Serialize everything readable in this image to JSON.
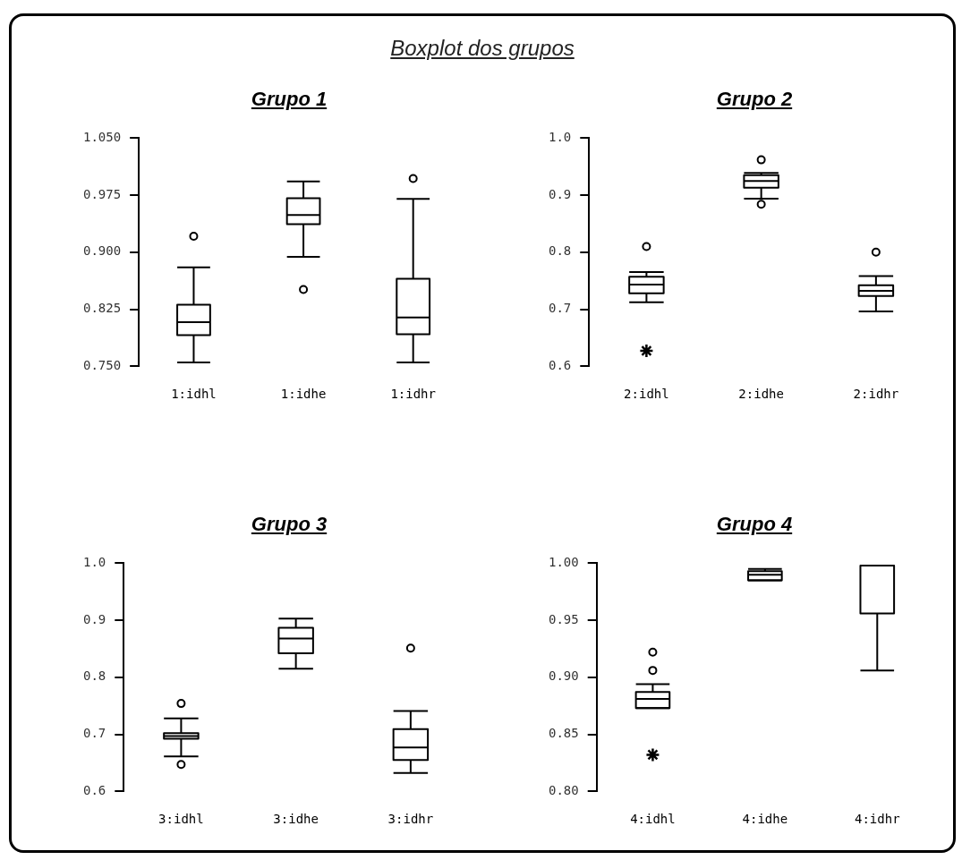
{
  "chart_data": [
    {
      "type": "other",
      "title": "Boxplot dos grupos"
    },
    {
      "type": "box",
      "title": "Grupo 1",
      "categories": [
        "1:idhl",
        "1:idhe",
        "1:idhr"
      ],
      "ylim": [
        0.75,
        1.05
      ],
      "yticks": [
        {
          "value": 0.75,
          "label": "0.750"
        },
        {
          "value": 0.825,
          "label": "0.825"
        },
        {
          "value": 0.9,
          "label": "0.900"
        },
        {
          "value": 0.975,
          "label": "0.975"
        },
        {
          "value": 1.05,
          "label": "1.050"
        }
      ],
      "series": [
        {
          "type": "box",
          "color": "#000000",
          "boxes": [
            {
              "low": 0.755,
              "q1": 0.791,
              "median": 0.808,
              "q3": 0.831,
              "high": 0.88,
              "outliers": [
                0.921
              ]
            },
            {
              "low": 0.894,
              "q1": 0.937,
              "median": 0.949,
              "q3": 0.971,
              "high": 0.993,
              "outliers": [
                0.851
              ]
            },
            {
              "low": 0.755,
              "q1": 0.792,
              "median": 0.814,
              "q3": 0.865,
              "high": 0.97,
              "outliers": [
                0.997
              ]
            }
          ]
        }
      ]
    },
    {
      "type": "box",
      "title": "Grupo 2",
      "categories": [
        "2:idhl",
        "2:idhe",
        "2:idhr"
      ],
      "ylim": [
        0.6,
        1.0
      ],
      "yticks": [
        0.6,
        0.7,
        0.8,
        0.9,
        {
          "value": 1.0,
          "label": "1.0"
        }
      ],
      "series": [
        {
          "type": "box",
          "color": "#000000",
          "boxes": [
            {
              "low": 0.712,
              "q1": 0.728,
              "median": 0.743,
              "q3": 0.757,
              "high": 0.765,
              "outliers": [
                0.81
              ]
            },
            {
              "low": 0.894,
              "q1": 0.913,
              "median": 0.925,
              "q3": 0.935,
              "high": 0.939,
              "outliers": [
                0.962,
                0.884
              ]
            },
            {
              "low": 0.696,
              "q1": 0.723,
              "median": 0.732,
              "q3": 0.742,
              "high": 0.758,
              "outliers": [
                0.8
              ]
            }
          ]
        },
        {
          "type": "scatter",
          "color": "#000000",
          "marker": "cross",
          "x": [
            "2:idhl"
          ],
          "values": [
            0.627
          ]
        }
      ]
    },
    {
      "type": "box",
      "title": "Grupo 3",
      "categories": [
        "3:idhl",
        "3:idhe",
        "3:idhr"
      ],
      "ylim": [
        0.6,
        1.0
      ],
      "yticks": [
        0.6,
        0.7,
        0.8,
        0.9,
        {
          "value": 1.0,
          "label": "1.0"
        }
      ],
      "series": [
        {
          "type": "box",
          "color": "#000000",
          "boxes": [
            {
              "low": 0.661,
              "q1": 0.692,
              "median": 0.697,
              "q3": 0.702,
              "high": 0.728,
              "outliers": [
                0.754,
                0.647
              ]
            },
            {
              "low": 0.815,
              "q1": 0.842,
              "median": 0.868,
              "q3": 0.887,
              "high": 0.903
            },
            {
              "low": 0.632,
              "q1": 0.655,
              "median": 0.677,
              "q3": 0.709,
              "high": 0.741,
              "outliers": [
                0.851
              ]
            }
          ]
        }
      ]
    },
    {
      "type": "box",
      "title": "Grupo 4",
      "categories": [
        "4:idhl",
        "4:idhe",
        "4:idhr"
      ],
      "ylim": [
        0.8,
        1.0
      ],
      "yticks": [
        {
          "value": 0.8,
          "label": "0.80"
        },
        0.85,
        {
          "value": 0.9,
          "label": "0.90"
        },
        0.95,
        {
          "value": 1.0,
          "label": "1.00"
        }
      ],
      "series": [
        {
          "type": "box",
          "color": "#000000",
          "boxes": [
            {
              "low": 0.873,
              "q1": 0.873,
              "median": 0.881,
              "q3": 0.887,
              "high": 0.894,
              "outliers": [
                0.922,
                0.906
              ]
            },
            {
              "low": 0.985,
              "q1": 0.985,
              "median": 0.99,
              "q3": 0.993,
              "high": 0.995
            },
            {
              "low": 0.906,
              "q1": 0.956,
              "median": 0.998,
              "q3": 0.998,
              "high": 0.998
            }
          ]
        },
        {
          "type": "scatter",
          "color": "#000000",
          "marker": "cross",
          "x": [
            "4:idhl"
          ],
          "values": [
            0.832
          ]
        }
      ]
    }
  ]
}
